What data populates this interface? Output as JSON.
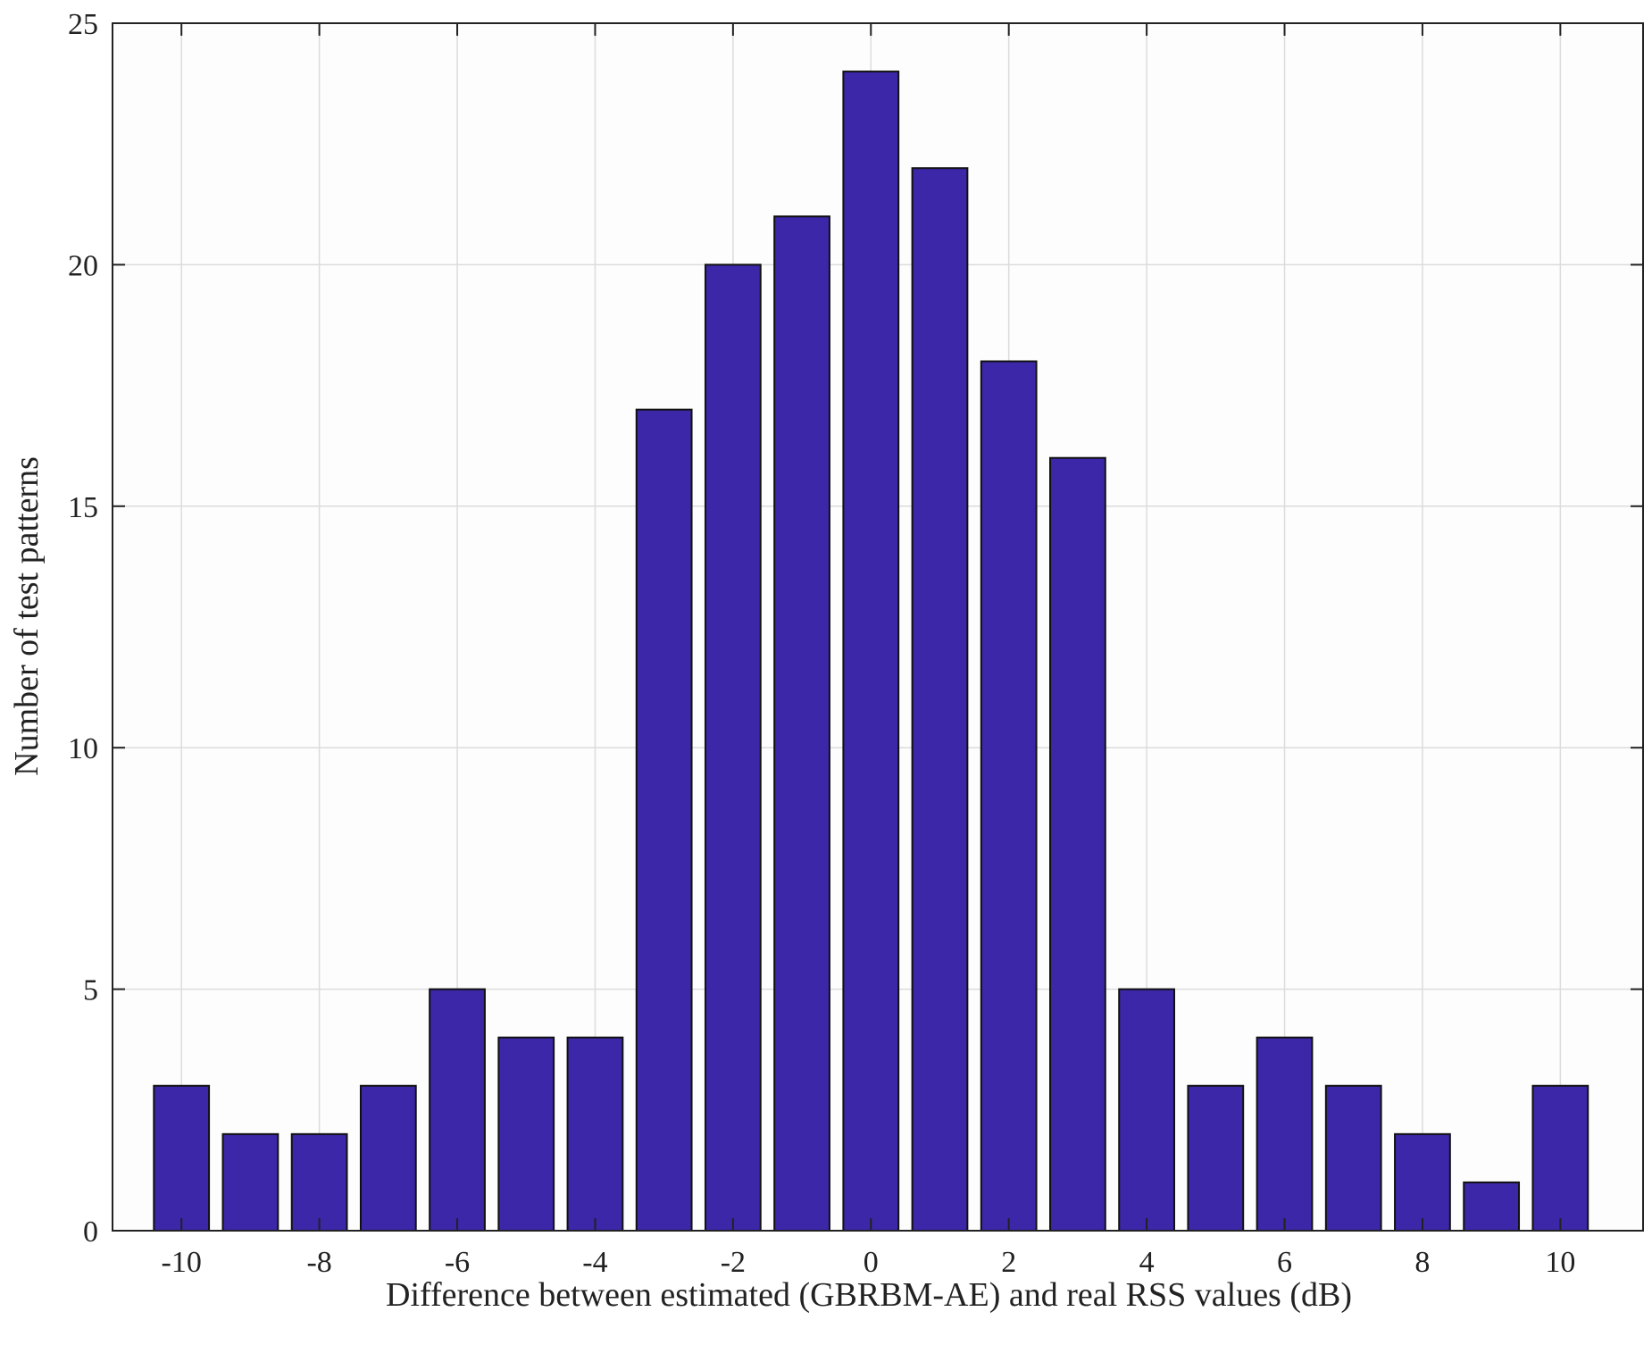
{
  "chart_data": {
    "type": "bar",
    "title": "",
    "xlabel": "Difference between estimated (GBRBM-AE) and real RSS values (dB)",
    "ylabel": "Number of test patterns",
    "x": [
      -10,
      -9,
      -8,
      -7,
      -6,
      -5,
      -4,
      -3,
      -2,
      -1,
      0,
      1,
      2,
      3,
      4,
      5,
      6,
      7,
      8,
      9,
      10
    ],
    "values": [
      3,
      2,
      2,
      3,
      5,
      4,
      4,
      17,
      20,
      21,
      24,
      22,
      18,
      16,
      5,
      3,
      4,
      3,
      2,
      1,
      3
    ],
    "xlim": [
      -11,
      11.2
    ],
    "ylim": [
      0,
      25
    ],
    "xticks": [
      -10,
      -8,
      -6,
      -4,
      -2,
      0,
      2,
      4,
      6,
      8,
      10
    ],
    "xtick_labels": [
      "-10",
      "-8",
      "-6",
      "-4",
      "-2",
      "0",
      "2",
      "4",
      "6",
      "8",
      "10"
    ],
    "yticks": [
      0,
      5,
      10,
      15,
      20,
      25
    ],
    "ytick_labels": [
      "0",
      "5",
      "10",
      "15",
      "20",
      "25"
    ],
    "bar_color": "#3b27a8",
    "grid": true,
    "legend": "none"
  }
}
